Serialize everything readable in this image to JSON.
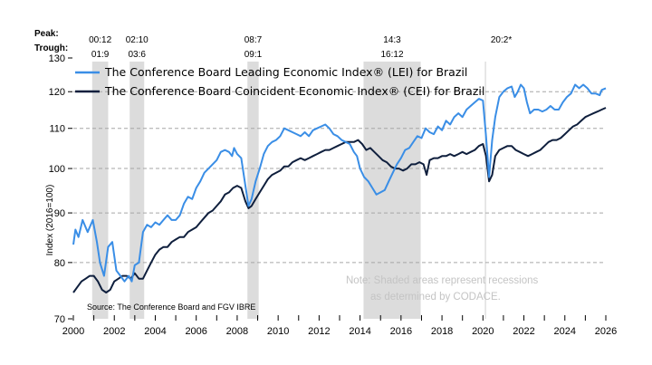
{
  "chart_data": {
    "type": "line",
    "title": "",
    "xlabel": "",
    "ylabel": "Index (2016=100)",
    "y_scale": "log",
    "ylim": [
      70,
      130
    ],
    "xlim": [
      2000,
      2026
    ],
    "yticks": [
      70,
      80,
      90,
      100,
      110,
      120,
      130
    ],
    "xticks": [
      2000,
      2002,
      2004,
      2006,
      2008,
      2010,
      2012,
      2014,
      2016,
      2018,
      2020,
      2022,
      2024,
      2026
    ],
    "grid": "horizontal dashed",
    "legend_position": "top-left",
    "series": [
      {
        "name": "The Conference Board Leading Economic Index® (LEI) for Brazil",
        "color": "#3a8ee6",
        "points": [
          [
            2000.0,
            83.5
          ],
          [
            2000.1,
            86.5
          ],
          [
            2000.25,
            85
          ],
          [
            2000.45,
            88.5
          ],
          [
            2000.7,
            86
          ],
          [
            2000.95,
            88.5
          ],
          [
            2001.15,
            84
          ],
          [
            2001.3,
            80
          ],
          [
            2001.5,
            77.5
          ],
          [
            2001.7,
            83
          ],
          [
            2001.9,
            84
          ],
          [
            2002.1,
            78.5
          ],
          [
            2002.3,
            77.5
          ],
          [
            2002.5,
            76.5
          ],
          [
            2002.7,
            77.5
          ],
          [
            2002.85,
            76.5
          ],
          [
            2003.0,
            79.5
          ],
          [
            2003.2,
            80
          ],
          [
            2003.4,
            86
          ],
          [
            2003.6,
            87.5
          ],
          [
            2003.8,
            87
          ],
          [
            2004.0,
            88
          ],
          [
            2004.2,
            87.5
          ],
          [
            2004.4,
            88.5
          ],
          [
            2004.6,
            89.5
          ],
          [
            2004.8,
            88.5
          ],
          [
            2005.0,
            88.5
          ],
          [
            2005.2,
            89.5
          ],
          [
            2005.4,
            92
          ],
          [
            2005.6,
            93.5
          ],
          [
            2005.8,
            93
          ],
          [
            2006.0,
            95.5
          ],
          [
            2006.2,
            97
          ],
          [
            2006.4,
            99
          ],
          [
            2006.6,
            100
          ],
          [
            2006.8,
            101
          ],
          [
            2007.0,
            102
          ],
          [
            2007.2,
            104
          ],
          [
            2007.4,
            104.5
          ],
          [
            2007.6,
            104
          ],
          [
            2007.75,
            103
          ],
          [
            2007.85,
            105
          ],
          [
            2008.0,
            103.5
          ],
          [
            2008.2,
            102.5
          ],
          [
            2008.4,
            96
          ],
          [
            2008.55,
            91.5
          ],
          [
            2008.7,
            93
          ],
          [
            2008.9,
            97
          ],
          [
            2009.1,
            100
          ],
          [
            2009.3,
            103.5
          ],
          [
            2009.5,
            105.5
          ],
          [
            2009.7,
            106.5
          ],
          [
            2009.9,
            107
          ],
          [
            2010.1,
            108
          ],
          [
            2010.3,
            110
          ],
          [
            2010.5,
            109.5
          ],
          [
            2010.7,
            109
          ],
          [
            2010.9,
            108.5
          ],
          [
            2011.1,
            108
          ],
          [
            2011.3,
            109
          ],
          [
            2011.5,
            108
          ],
          [
            2011.7,
            109.5
          ],
          [
            2011.9,
            110
          ],
          [
            2012.1,
            110.5
          ],
          [
            2012.3,
            111
          ],
          [
            2012.5,
            110
          ],
          [
            2012.7,
            108.5
          ],
          [
            2012.9,
            108
          ],
          [
            2013.1,
            107
          ],
          [
            2013.3,
            106.5
          ],
          [
            2013.5,
            106
          ],
          [
            2013.7,
            104
          ],
          [
            2013.85,
            103
          ],
          [
            2014.0,
            100
          ],
          [
            2014.2,
            98
          ],
          [
            2014.4,
            97
          ],
          [
            2014.6,
            95.5
          ],
          [
            2014.8,
            94
          ],
          [
            2015.0,
            94.5
          ],
          [
            2015.2,
            95
          ],
          [
            2015.4,
            97
          ],
          [
            2015.6,
            99
          ],
          [
            2015.8,
            101
          ],
          [
            2016.0,
            102.5
          ],
          [
            2016.2,
            104.5
          ],
          [
            2016.4,
            105
          ],
          [
            2016.6,
            106.5
          ],
          [
            2016.8,
            108
          ],
          [
            2017.0,
            107.5
          ],
          [
            2017.2,
            110
          ],
          [
            2017.4,
            109
          ],
          [
            2017.6,
            108.5
          ],
          [
            2017.8,
            110.5
          ],
          [
            2018.0,
            109.5
          ],
          [
            2018.2,
            112
          ],
          [
            2018.4,
            111
          ],
          [
            2018.6,
            113
          ],
          [
            2018.8,
            114
          ],
          [
            2019.0,
            113
          ],
          [
            2019.2,
            115
          ],
          [
            2019.4,
            116
          ],
          [
            2019.6,
            117
          ],
          [
            2019.8,
            118
          ],
          [
            2020.0,
            117.5
          ],
          [
            2020.15,
            108
          ],
          [
            2020.3,
            98
          ],
          [
            2020.45,
            107
          ],
          [
            2020.6,
            113
          ],
          [
            2020.8,
            118.5
          ],
          [
            2021.0,
            120
          ],
          [
            2021.2,
            121
          ],
          [
            2021.4,
            121.5
          ],
          [
            2021.55,
            118.5
          ],
          [
            2021.7,
            120
          ],
          [
            2021.85,
            122
          ],
          [
            2022.0,
            121
          ],
          [
            2022.15,
            117
          ],
          [
            2022.3,
            114
          ],
          [
            2022.5,
            115
          ],
          [
            2022.7,
            115
          ],
          [
            2022.9,
            114.5
          ],
          [
            2023.1,
            115
          ],
          [
            2023.3,
            116
          ],
          [
            2023.5,
            115
          ],
          [
            2023.7,
            115
          ],
          [
            2023.9,
            117
          ],
          [
            2024.1,
            118.5
          ],
          [
            2024.3,
            119.5
          ],
          [
            2024.5,
            122
          ],
          [
            2024.7,
            121
          ],
          [
            2024.9,
            122
          ],
          [
            2025.1,
            121
          ],
          [
            2025.3,
            119.5
          ],
          [
            2025.5,
            119.5
          ],
          [
            2025.7,
            119
          ],
          [
            2025.8,
            120.5
          ],
          [
            2026.0,
            121
          ]
        ]
      },
      {
        "name": "The Conference Board Coincident Economic Index® (CEI) for Brazil",
        "color": "#0f1f3d",
        "points": [
          [
            2000.0,
            74.5
          ],
          [
            2000.2,
            75.5
          ],
          [
            2000.4,
            76.5
          ],
          [
            2000.6,
            77
          ],
          [
            2000.8,
            77.5
          ],
          [
            2001.0,
            77.5
          ],
          [
            2001.2,
            76.5
          ],
          [
            2001.4,
            75
          ],
          [
            2001.6,
            74.5
          ],
          [
            2001.8,
            75
          ],
          [
            2002.0,
            76.5
          ],
          [
            2002.2,
            77
          ],
          [
            2002.4,
            77.5
          ],
          [
            2002.6,
            77.5
          ],
          [
            2002.8,
            77
          ],
          [
            2003.0,
            78
          ],
          [
            2003.2,
            77
          ],
          [
            2003.4,
            77
          ],
          [
            2003.6,
            78.5
          ],
          [
            2003.8,
            80
          ],
          [
            2004.0,
            81.5
          ],
          [
            2004.2,
            82.5
          ],
          [
            2004.4,
            83
          ],
          [
            2004.6,
            83
          ],
          [
            2004.8,
            84
          ],
          [
            2005.0,
            84.5
          ],
          [
            2005.2,
            85
          ],
          [
            2005.4,
            85
          ],
          [
            2005.6,
            86
          ],
          [
            2005.8,
            86.5
          ],
          [
            2006.0,
            87
          ],
          [
            2006.2,
            88
          ],
          [
            2006.4,
            89
          ],
          [
            2006.6,
            90
          ],
          [
            2006.8,
            90.5
          ],
          [
            2007.0,
            91.5
          ],
          [
            2007.2,
            92.5
          ],
          [
            2007.4,
            94
          ],
          [
            2007.6,
            94.5
          ],
          [
            2007.8,
            95.5
          ],
          [
            2008.0,
            96
          ],
          [
            2008.2,
            95.5
          ],
          [
            2008.4,
            92.5
          ],
          [
            2008.55,
            91
          ],
          [
            2008.7,
            91.5
          ],
          [
            2008.9,
            93
          ],
          [
            2009.1,
            94.5
          ],
          [
            2009.3,
            96
          ],
          [
            2009.5,
            97.5
          ],
          [
            2009.7,
            98.5
          ],
          [
            2009.9,
            99
          ],
          [
            2010.1,
            99.5
          ],
          [
            2010.3,
            100.5
          ],
          [
            2010.5,
            100.5
          ],
          [
            2010.7,
            101.5
          ],
          [
            2010.9,
            102
          ],
          [
            2011.1,
            102.5
          ],
          [
            2011.3,
            102
          ],
          [
            2011.5,
            102.5
          ],
          [
            2011.7,
            103
          ],
          [
            2011.9,
            103.5
          ],
          [
            2012.1,
            104
          ],
          [
            2012.3,
            104.5
          ],
          [
            2012.5,
            104.5
          ],
          [
            2012.7,
            105
          ],
          [
            2012.9,
            105.5
          ],
          [
            2013.1,
            106
          ],
          [
            2013.3,
            106.5
          ],
          [
            2013.5,
            106.5
          ],
          [
            2013.7,
            106.5
          ],
          [
            2013.9,
            107
          ],
          [
            2014.1,
            106
          ],
          [
            2014.3,
            104.5
          ],
          [
            2014.5,
            105
          ],
          [
            2014.7,
            104
          ],
          [
            2014.9,
            103
          ],
          [
            2015.1,
            102
          ],
          [
            2015.3,
            101.5
          ],
          [
            2015.5,
            100.5
          ],
          [
            2015.7,
            100
          ],
          [
            2015.9,
            100
          ],
          [
            2016.1,
            99.5
          ],
          [
            2016.3,
            100
          ],
          [
            2016.5,
            101
          ],
          [
            2016.7,
            101
          ],
          [
            2016.9,
            101.5
          ],
          [
            2017.1,
            101
          ],
          [
            2017.25,
            98.5
          ],
          [
            2017.4,
            102
          ],
          [
            2017.6,
            102.5
          ],
          [
            2017.8,
            102.5
          ],
          [
            2018.0,
            103
          ],
          [
            2018.2,
            103
          ],
          [
            2018.4,
            103.5
          ],
          [
            2018.6,
            103
          ],
          [
            2018.8,
            103.5
          ],
          [
            2019.0,
            104
          ],
          [
            2019.2,
            103.5
          ],
          [
            2019.4,
            104
          ],
          [
            2019.6,
            104.5
          ],
          [
            2019.8,
            105.5
          ],
          [
            2020.0,
            106
          ],
          [
            2020.15,
            103
          ],
          [
            2020.3,
            97
          ],
          [
            2020.45,
            98.5
          ],
          [
            2020.6,
            103
          ],
          [
            2020.8,
            104.5
          ],
          [
            2021.0,
            105
          ],
          [
            2021.2,
            105.5
          ],
          [
            2021.4,
            105.5
          ],
          [
            2021.6,
            104.5
          ],
          [
            2021.8,
            104
          ],
          [
            2022.0,
            103.5
          ],
          [
            2022.2,
            103
          ],
          [
            2022.4,
            103.5
          ],
          [
            2022.6,
            104
          ],
          [
            2022.8,
            104.5
          ],
          [
            2023.0,
            105.5
          ],
          [
            2023.2,
            106.5
          ],
          [
            2023.4,
            107
          ],
          [
            2023.6,
            107
          ],
          [
            2023.8,
            107.5
          ],
          [
            2024.0,
            108.5
          ],
          [
            2024.2,
            109.5
          ],
          [
            2024.4,
            110.5
          ],
          [
            2024.6,
            111
          ],
          [
            2024.8,
            112
          ],
          [
            2025.0,
            113
          ],
          [
            2025.2,
            113.5
          ],
          [
            2025.4,
            114
          ],
          [
            2025.6,
            114.5
          ],
          [
            2025.8,
            115
          ],
          [
            2026.0,
            115.5
          ]
        ]
      }
    ],
    "recessions": [
      {
        "peak_label": "00:12",
        "trough_label": "01:9",
        "start": 2000.92,
        "end": 2001.7
      },
      {
        "peak_label": "02:10",
        "trough_label": "03:6",
        "start": 2002.75,
        "end": 2003.46
      },
      {
        "peak_label": "08:7",
        "trough_label": "09:1",
        "start": 2008.5,
        "end": 2009.05
      },
      {
        "peak_label": "14:3",
        "trough_label": "16:12",
        "start": 2014.17,
        "end": 2016.96
      },
      {
        "peak_label": "20:2*",
        "trough_label": "",
        "start": 2020.1,
        "end": 2020.12
      }
    ],
    "peak_header": "Peak:",
    "trough_header": "Trough:",
    "source": "Source: The Conference Board and FGV IBRE",
    "note_line1": "Note: Shaded areas represent recessions",
    "note_line2": "as determined by CODACE.",
    "y_tick_labels": [
      "70",
      "80",
      "90",
      "100",
      "110",
      "120",
      "130"
    ],
    "x_tick_labels": [
      "2000",
      "2002",
      "2004",
      "2006",
      "2008",
      "2010",
      "2012",
      "2014",
      "2016",
      "2018",
      "2020",
      "2022",
      "2024",
      "2026"
    ]
  }
}
